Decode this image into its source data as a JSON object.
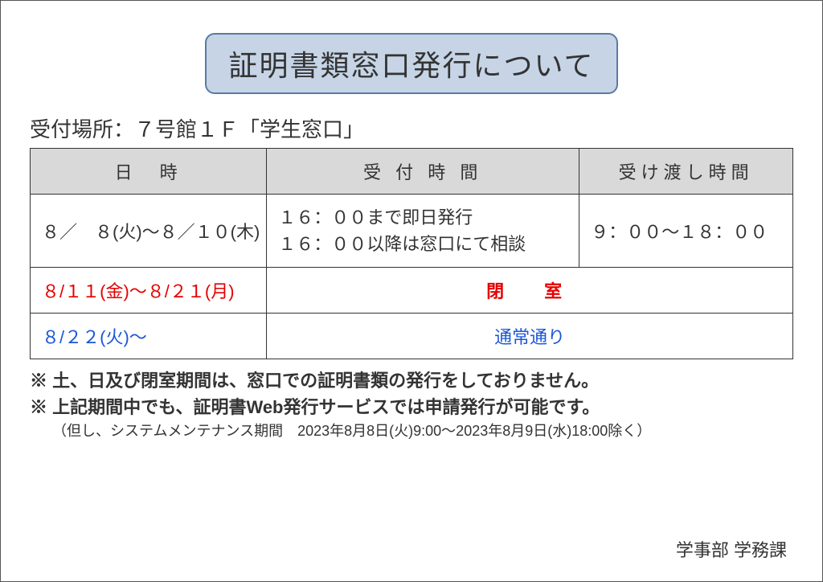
{
  "title": "証明書類窓口発行について",
  "location_label": "受付場所：７号館１Ｆ「学生窓口」",
  "table": {
    "header": {
      "date": "日　時",
      "accept": "受 付 時 間",
      "pickup": "受け渡し時間"
    },
    "row1": {
      "date": "８／　８(火)～８／１０(木)",
      "accept_line1": "１６：００まで即日発行",
      "accept_line2": "１６：００以降は窓口にて相談",
      "pickup": "９：００～１８：００"
    },
    "row2": {
      "date": "８/１１(金)～８/２１(月)",
      "status": "閉　室"
    },
    "row3": {
      "date": "８/２２(火)～",
      "status": "通常通り"
    }
  },
  "notes": {
    "line1": "※ 土、日及び閉室期間は、窓口での証明書類の発行をしておりません。",
    "line2": "※ 上記期間中でも、証明書Web発行サービスでは申請発行が可能です。",
    "sub": "（但し、システムメンテナンス期間　2023年8月8日(火)9:00～2023年8月9日(水)18:00除く）"
  },
  "signature": "学事部 学務課",
  "colors": {
    "title_bg": "#c6d4e6",
    "title_border": "#5a7aa3",
    "header_bg": "#d9d9d9",
    "closed_color": "#e60000",
    "normal_color": "#1a57d6",
    "text_color": "#333333",
    "border_color": "#333333"
  }
}
